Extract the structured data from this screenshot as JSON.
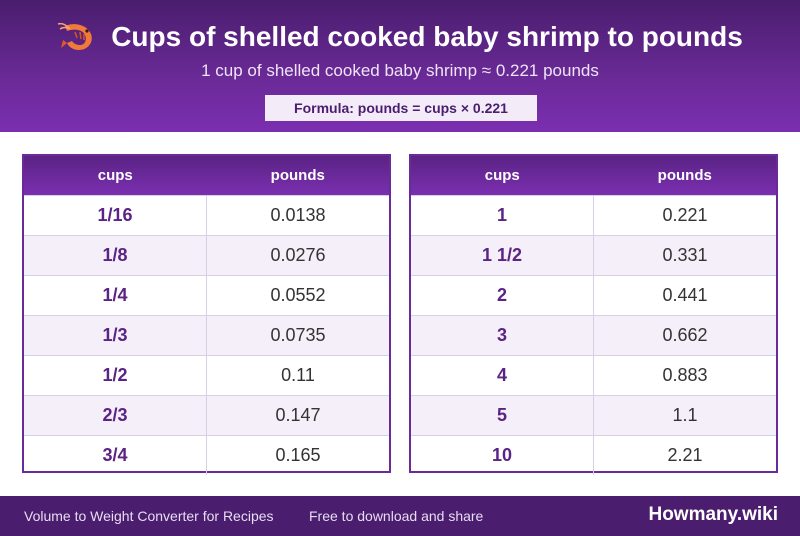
{
  "header": {
    "title": "Cups of shelled cooked baby shrimp to pounds",
    "subtitle": "1 cup of shelled cooked baby shrimp ≈ 0.221 pounds",
    "formula": "Formula: pounds = cups × 0.221",
    "icon": "shrimp-icon"
  },
  "tables": {
    "left": {
      "col1": "cups",
      "col2": "pounds",
      "rows": [
        {
          "cups": "1/16",
          "pounds": "0.0138"
        },
        {
          "cups": "1/8",
          "pounds": "0.0276"
        },
        {
          "cups": "1/4",
          "pounds": "0.0552"
        },
        {
          "cups": "1/3",
          "pounds": "0.0735"
        },
        {
          "cups": "1/2",
          "pounds": "0.11"
        },
        {
          "cups": "2/3",
          "pounds": "0.147"
        },
        {
          "cups": "3/4",
          "pounds": "0.165"
        }
      ]
    },
    "right": {
      "col1": "cups",
      "col2": "pounds",
      "rows": [
        {
          "cups": "1",
          "pounds": "0.221"
        },
        {
          "cups": "1 1/2",
          "pounds": "0.331"
        },
        {
          "cups": "2",
          "pounds": "0.441"
        },
        {
          "cups": "3",
          "pounds": "0.662"
        },
        {
          "cups": "4",
          "pounds": "0.883"
        },
        {
          "cups": "5",
          "pounds": "1.1"
        },
        {
          "cups": "10",
          "pounds": "2.21"
        }
      ]
    }
  },
  "footer": {
    "tagline1": "Volume to Weight Converter for Recipes",
    "tagline2": "Free to download and share",
    "brand": "Howmany.wiki"
  },
  "colors": {
    "header": "#6a2a97",
    "accent": "#5a2384",
    "footer": "#4a1d6e"
  }
}
